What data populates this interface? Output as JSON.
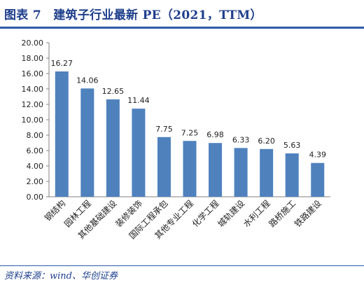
{
  "figure": {
    "title": "图表 7　建筑子行业最新 PE（2021，TTM）",
    "source": "资料来源：wind、华创证券"
  },
  "chart_data": {
    "type": "bar",
    "categories": [
      "钢结构",
      "园林工程",
      "其他基础建设",
      "装修装饰",
      "国际工程承包",
      "其他专业工程",
      "化学工程",
      "城轨建设",
      "水利工程",
      "路桥施工",
      "铁路建设"
    ],
    "values": [
      16.27,
      14.06,
      12.65,
      11.44,
      7.75,
      7.25,
      6.98,
      6.33,
      6.2,
      5.63,
      4.39
    ],
    "value_labels": [
      "16.27",
      "14.06",
      "12.65",
      "11.44",
      "7.75",
      "7.25",
      "6.98",
      "6.33",
      "6.20",
      "5.63",
      "4.39"
    ],
    "y_ticks": [
      "0.00",
      "2.00",
      "4.00",
      "6.00",
      "8.00",
      "10.00",
      "12.00",
      "14.00",
      "16.00",
      "18.00",
      "20.00"
    ],
    "ylim": [
      0,
      20
    ],
    "grid": false,
    "bar_color": "#4f81bd"
  }
}
